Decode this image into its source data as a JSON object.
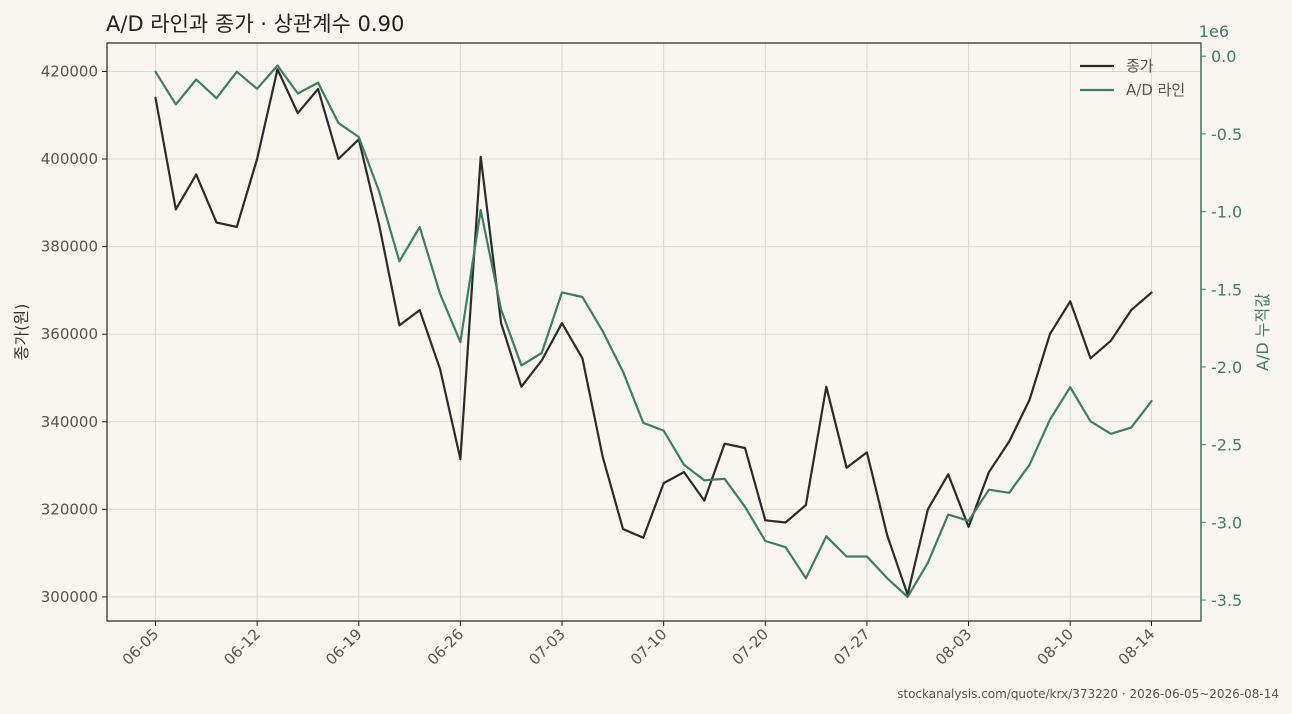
{
  "chart_data": {
    "type": "line",
    "title": "A/D 라인과 종가 · 상관계수 0.90",
    "ylabel_left": "종가(원)",
    "ylabel_right": "A/D 누적값",
    "right_axis_exponent": "1e6",
    "x_ticks": [
      "06-05",
      "06-12",
      "06-19",
      "06-26",
      "07-03",
      "07-10",
      "07-20",
      "07-27",
      "08-03",
      "08-10",
      "08-14"
    ],
    "x_tick_index": [
      0,
      5,
      10,
      15,
      20,
      25,
      30,
      35,
      40,
      45,
      49
    ],
    "ylim_left": [
      294500,
      426500
    ],
    "yticks_left": [
      300000,
      320000,
      340000,
      360000,
      380000,
      400000,
      420000
    ],
    "ylim_right": [
      -3.635,
      0.085
    ],
    "yticks_right": [
      -3.5,
      -3.0,
      -2.5,
      -2.0,
      -1.5,
      -1.0,
      -0.5,
      0.0
    ],
    "ytick_labels_right": [
      "-3.5",
      "-3.0",
      "-2.5",
      "-2.0",
      "-1.5",
      "-1.0",
      "-0.5",
      "0.0"
    ],
    "grid": true,
    "legend_position": "top-right",
    "series": [
      {
        "name": "종가",
        "axis": "left",
        "color": "#2b2b2b",
        "values": [
          414000,
          388500,
          396500,
          385500,
          384500,
          400000,
          420500,
          410500,
          416000,
          400000,
          404500,
          385000,
          362000,
          365500,
          352000,
          331500,
          400500,
          362500,
          348000,
          354000,
          362500,
          354500,
          332000,
          315500,
          313500,
          326000,
          328500,
          322000,
          335000,
          334000,
          317500,
          317000,
          321000,
          348000,
          329500,
          333000,
          314000,
          300500,
          320000,
          328000,
          316000,
          328500,
          335500,
          345000,
          360000,
          367500,
          354500,
          358500,
          365500,
          369500
        ]
      },
      {
        "name": "A/D 라인",
        "axis": "right",
        "color": "#3f7f5c",
        "values": [
          -0.1,
          -0.31,
          -0.15,
          -0.27,
          -0.1,
          -0.21,
          -0.06,
          -0.24,
          -0.17,
          -0.43,
          -0.52,
          -0.87,
          -1.32,
          -1.1,
          -1.53,
          -1.84,
          -0.99,
          -1.63,
          -1.99,
          -1.91,
          -1.52,
          -1.55,
          -1.77,
          -2.03,
          -2.36,
          -2.41,
          -2.63,
          -2.73,
          -2.72,
          -2.9,
          -3.12,
          -3.16,
          -3.36,
          -3.09,
          -3.22,
          -3.22,
          -3.36,
          -3.48,
          -3.26,
          -2.95,
          -2.99,
          -2.79,
          -2.81,
          -2.63,
          -2.34,
          -2.13,
          -2.35,
          -2.43,
          -2.39,
          -2.22
        ]
      }
    ]
  },
  "footer": "stockanalysis.com/quote/krx/373220 · 2026-06-05~2026-08-14"
}
